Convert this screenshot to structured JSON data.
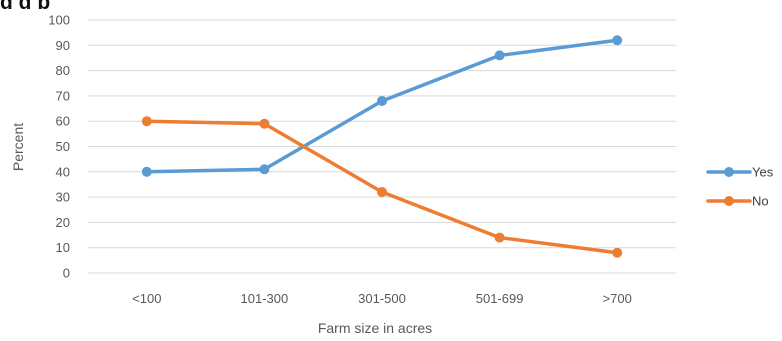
{
  "title_fragment": "g                                    g                                              p",
  "chart_data": {
    "type": "line",
    "categories": [
      "<100",
      "101-300",
      "301-500",
      "501-699",
      ">700"
    ],
    "series": [
      {
        "name": "Yes",
        "values": [
          40,
          41,
          68,
          86,
          92
        ],
        "color": "#5b9bd5"
      },
      {
        "name": "No",
        "values": [
          60,
          59,
          32,
          14,
          8
        ],
        "color": "#ed7d31"
      }
    ],
    "xlabel": "Farm size in acres",
    "ylabel": "Percent",
    "ylim": [
      0,
      100
    ],
    "yticks": [
      0,
      10,
      20,
      30,
      40,
      50,
      60,
      70,
      80,
      90,
      100
    ],
    "grid": true,
    "legend_position": "right"
  }
}
